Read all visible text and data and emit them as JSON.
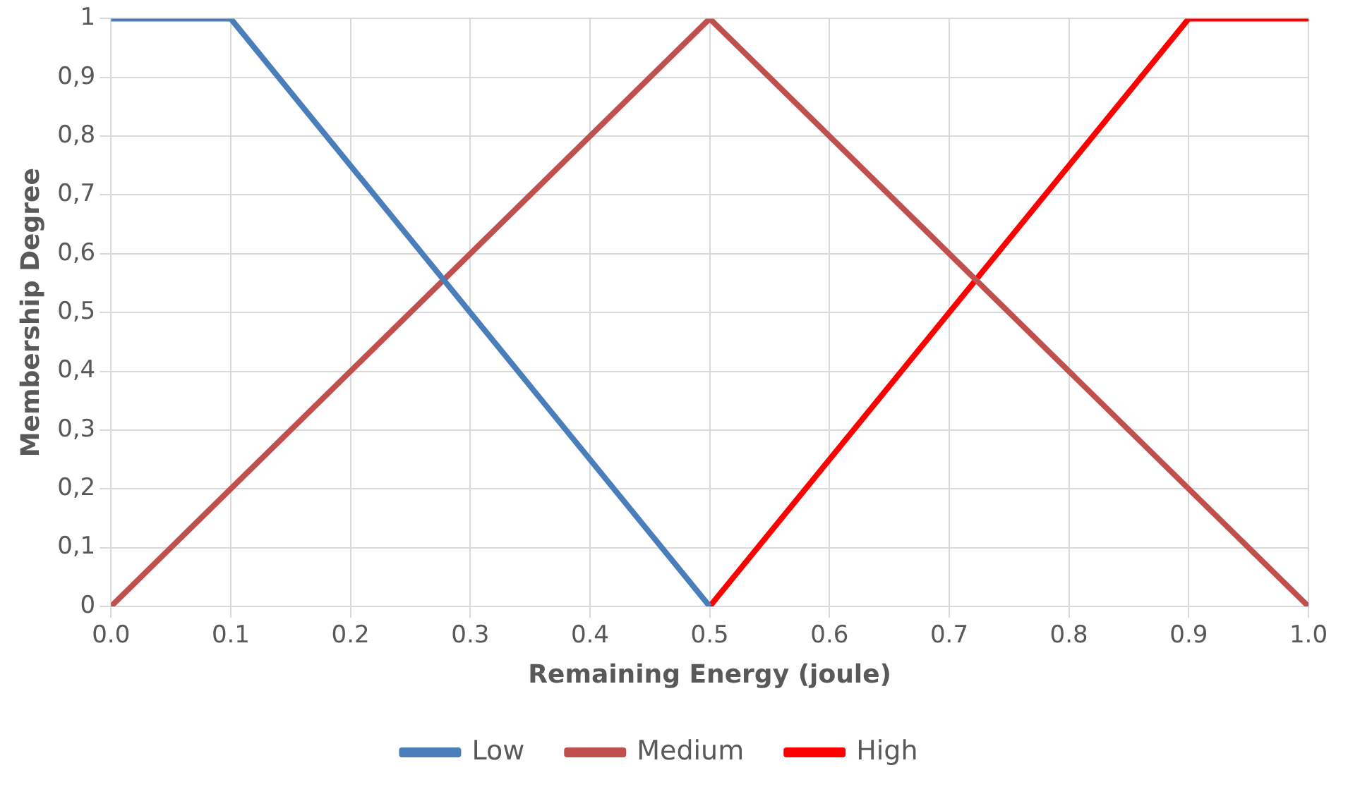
{
  "chart_data": {
    "type": "line",
    "xlabel": "Remaining Energy (joule)",
    "ylabel": "Membership Degree",
    "series": [
      {
        "name": "Low",
        "color": "#4a7ebb",
        "x": [
          0,
          0.1,
          0.5
        ],
        "values": [
          1,
          1,
          0
        ]
      },
      {
        "name": "Medium",
        "color": "#c0504d",
        "x": [
          0,
          0.5,
          1
        ],
        "values": [
          0,
          1,
          0
        ]
      },
      {
        "name": "High",
        "color": "#ff0000",
        "x": [
          0.5,
          0.9,
          1
        ],
        "values": [
          0,
          1,
          1
        ]
      }
    ],
    "xlim": [
      0,
      1
    ],
    "xticks": [
      {
        "value": 0,
        "label": "0.0"
      },
      {
        "value": 0.1,
        "label": "0.1"
      },
      {
        "value": 0.2,
        "label": "0.2"
      },
      {
        "value": 0.3,
        "label": "0.3"
      },
      {
        "value": 0.4,
        "label": "0.4"
      },
      {
        "value": 0.5,
        "label": "0.5"
      },
      {
        "value": 0.6,
        "label": "0.6"
      },
      {
        "value": 0.7,
        "label": "0.7"
      },
      {
        "value": 0.8,
        "label": "0.8"
      },
      {
        "value": 0.9,
        "label": "0.9"
      },
      {
        "value": 1,
        "label": "1.0"
      }
    ],
    "ylim": [
      0,
      1
    ],
    "yticks": [
      0,
      {
        "value": 0.1,
        "label": "0,1"
      },
      {
        "value": 0.2,
        "label": "0,2"
      },
      {
        "value": 0.3,
        "label": "0,3"
      },
      {
        "value": 0.4,
        "label": "0,4"
      },
      {
        "value": 0.5,
        "label": "0,5"
      },
      {
        "value": 0.6,
        "label": "0,6"
      },
      {
        "value": 0.7,
        "label": "0,7"
      },
      {
        "value": 0.8,
        "label": "0,8"
      },
      {
        "value": 0.9,
        "label": "0,9"
      },
      1
    ],
    "grid": true,
    "legend": "bottom",
    "marker": "none",
    "line_style": "solid"
  }
}
